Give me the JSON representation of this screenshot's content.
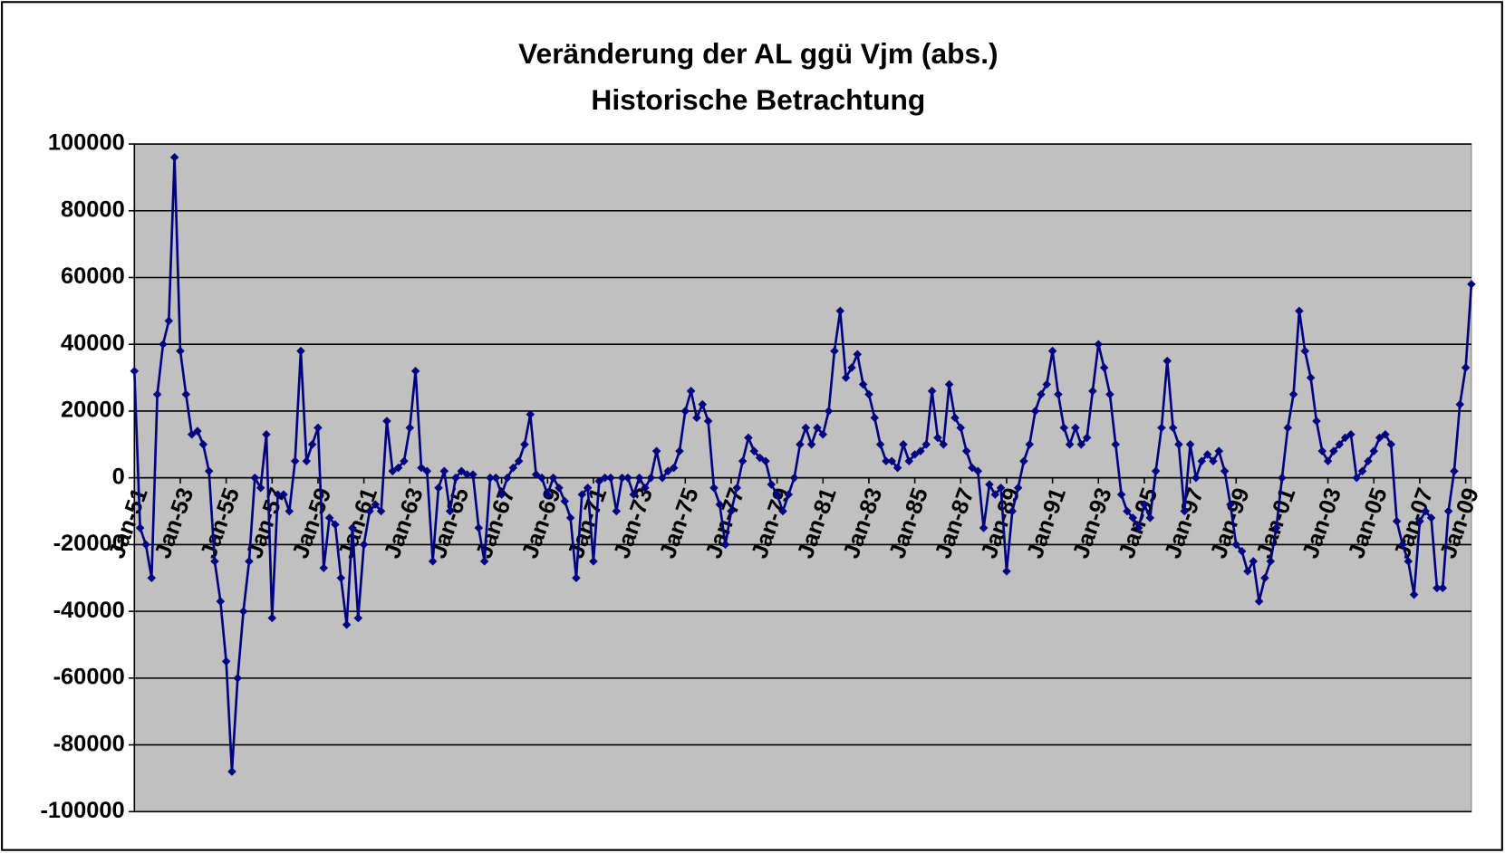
{
  "chart_data": {
    "type": "line",
    "title": "Veränderung der AL ggü Vjm (abs.)",
    "subtitle": "Historische Betrachtung",
    "categories": [
      "Jan-51",
      null,
      null,
      null,
      null,
      null,
      null,
      null,
      "Jan-53",
      null,
      null,
      null,
      null,
      null,
      null,
      null,
      "Jan-55",
      null,
      null,
      null,
      null,
      null,
      null,
      null,
      "Jan-57",
      null,
      null,
      null,
      null,
      null,
      null,
      null,
      "Jan-59",
      null,
      null,
      null,
      null,
      null,
      null,
      null,
      "Jan-61",
      null,
      null,
      null,
      null,
      null,
      null,
      null,
      "Jan-63",
      null,
      null,
      null,
      null,
      null,
      null,
      null,
      "Jan-65",
      null,
      null,
      null,
      null,
      null,
      null,
      null,
      "Jan-67",
      null,
      null,
      null,
      null,
      null,
      null,
      null,
      "Jan-69",
      null,
      null,
      null,
      null,
      null,
      null,
      null,
      "Jan-71",
      null,
      null,
      null,
      null,
      null,
      null,
      null,
      "Jan-73",
      null,
      null,
      null,
      null,
      null,
      null,
      null,
      "Jan-75",
      null,
      null,
      null,
      null,
      null,
      null,
      null,
      "Jan-77",
      null,
      null,
      null,
      null,
      null,
      null,
      null,
      "Jan-79",
      null,
      null,
      null,
      null,
      null,
      null,
      null,
      "Jan-81",
      null,
      null,
      null,
      null,
      null,
      null,
      null,
      "Jan-83",
      null,
      null,
      null,
      null,
      null,
      null,
      null,
      "Jan-85",
      null,
      null,
      null,
      null,
      null,
      null,
      null,
      "Jan-87",
      null,
      null,
      null,
      null,
      null,
      null,
      null,
      "Jan-89",
      null,
      null,
      null,
      null,
      null,
      null,
      null,
      "Jan-91",
      null,
      null,
      null,
      null,
      null,
      null,
      null,
      "Jan-93",
      null,
      null,
      null,
      null,
      null,
      null,
      null,
      "Jan-95",
      null,
      null,
      null,
      null,
      null,
      null,
      null,
      "Jan-97",
      null,
      null,
      null,
      null,
      null,
      null,
      null,
      "Jan-99",
      null,
      null,
      null,
      null,
      null,
      null,
      null,
      "Jan-01",
      null,
      null,
      null,
      null,
      null,
      null,
      null,
      "Jan-03",
      null,
      null,
      null,
      null,
      null,
      null,
      null,
      "Jan-05",
      null,
      null,
      null,
      null,
      null,
      null,
      null,
      "Jan-07",
      null,
      null,
      null,
      null,
      null,
      null,
      null,
      "Jan-09",
      null
    ],
    "series": [
      {
        "color": "#000080",
        "values": [
          32000,
          -15000,
          -20000,
          -30000,
          25000,
          40000,
          47000,
          96000,
          38000,
          25000,
          13000,
          14000,
          10000,
          2000,
          -25000,
          -37000,
          -55000,
          -88000,
          -60000,
          -40000,
          -25000,
          0,
          -3000,
          13000,
          -42000,
          -5000,
          -5000,
          -10000,
          5000,
          38000,
          5000,
          10000,
          15000,
          -27000,
          -12000,
          -14000,
          -30000,
          -44000,
          -15000,
          -42000,
          -20000,
          -10000,
          -8000,
          -10000,
          17000,
          2000,
          3000,
          5000,
          15000,
          32000,
          3000,
          2000,
          -25000,
          -3000,
          2000,
          -10000,
          0,
          2000,
          1000,
          1000,
          -15000,
          -25000,
          0,
          0,
          -5000,
          0,
          3000,
          5000,
          10000,
          19000,
          1000,
          0,
          -5000,
          0,
          -3000,
          -7000,
          -12000,
          -30000,
          -5000,
          -3000,
          -25000,
          -1000,
          0,
          0,
          -10000,
          0,
          0,
          -5000,
          0,
          -3000,
          0,
          8000,
          0,
          2000,
          3000,
          8000,
          20000,
          26000,
          18000,
          22000,
          17000,
          -3000,
          -8000,
          -20000,
          -10000,
          -3000,
          5000,
          12000,
          8000,
          6000,
          5000,
          -2000,
          -5000,
          -10000,
          -5000,
          0,
          10000,
          15000,
          10000,
          15000,
          13000,
          20000,
          38000,
          50000,
          30000,
          33000,
          37000,
          28000,
          25000,
          18000,
          10000,
          5000,
          5000,
          3000,
          10000,
          5000,
          7000,
          8000,
          10000,
          26000,
          12000,
          10000,
          28000,
          18000,
          15000,
          8000,
          3000,
          2000,
          -15000,
          -2000,
          -5000,
          -3000,
          -28000,
          -10000,
          -3000,
          5000,
          10000,
          20000,
          25000,
          28000,
          38000,
          25000,
          15000,
          10000,
          15000,
          10000,
          12000,
          26000,
          40000,
          33000,
          25000,
          10000,
          -5000,
          -10000,
          -12000,
          -15000,
          -8000,
          -12000,
          2000,
          15000,
          35000,
          15000,
          10000,
          -10000,
          10000,
          0,
          5000,
          7000,
          5000,
          8000,
          2000,
          -8000,
          -20000,
          -22000,
          -28000,
          -25000,
          -37000,
          -30000,
          -25000,
          -15000,
          0,
          15000,
          25000,
          50000,
          38000,
          30000,
          17000,
          8000,
          5000,
          8000,
          10000,
          12000,
          13000,
          0,
          2000,
          5000,
          8000,
          12000,
          13000,
          10000,
          -13000,
          -20000,
          -25000,
          -35000,
          -13000,
          -10000,
          -12000,
          -33000,
          -33000,
          -10000,
          2000,
          22000,
          33000,
          58000
        ]
      }
    ],
    "ylim": [
      -100000,
      100000
    ],
    "yticks": [
      -100000,
      -80000,
      -60000,
      -40000,
      -20000,
      0,
      20000,
      40000,
      60000,
      80000,
      100000
    ],
    "grid": true
  }
}
